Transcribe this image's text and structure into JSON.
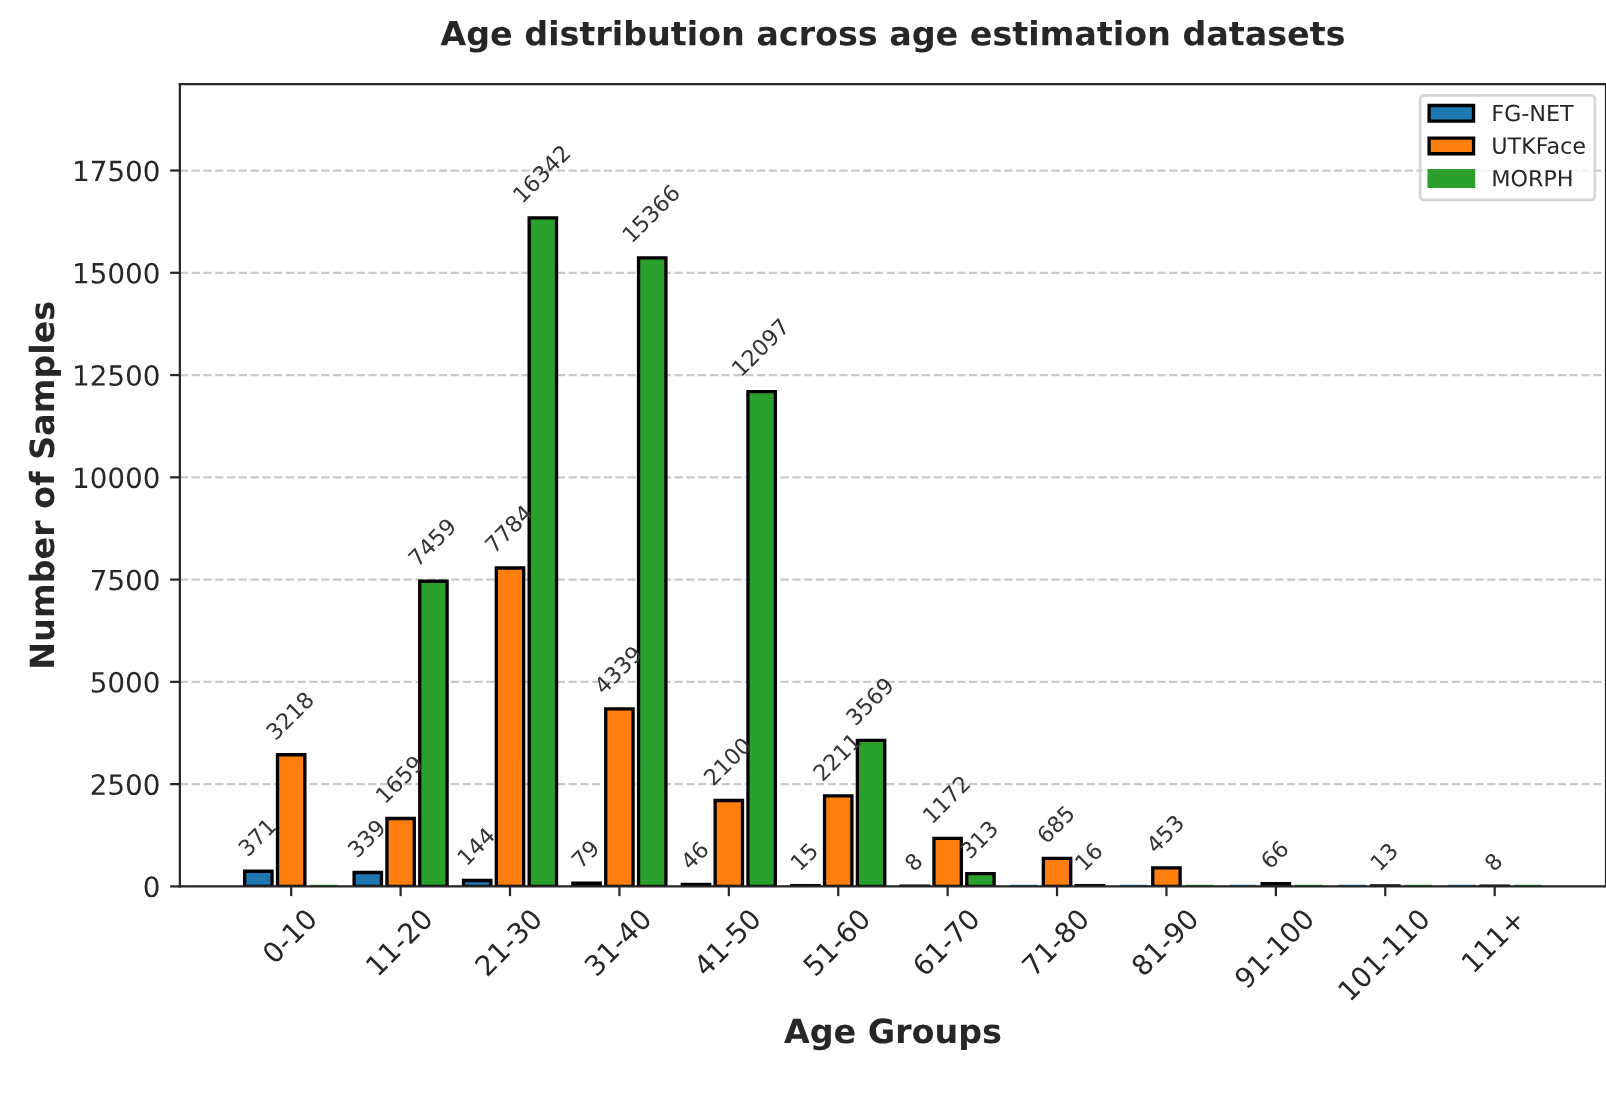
{
  "chart_data": {
    "type": "bar",
    "title": "Age distribution across age estimation datasets",
    "xlabel": "Age Groups",
    "ylabel": "Number of Samples",
    "categories": [
      "0-10",
      "11-20",
      "21-30",
      "31-40",
      "41-50",
      "51-60",
      "61-70",
      "71-80",
      "81-90",
      "91-100",
      "101-110",
      "111+"
    ],
    "series": [
      {
        "name": "FG-NET",
        "color": "#1f77b4",
        "values": [
          371,
          339,
          144,
          79,
          46,
          15,
          8,
          0,
          0,
          0,
          0,
          0
        ],
        "value_labels": [
          "371",
          "339",
          "144",
          "79",
          "46",
          "15",
          "8",
          null,
          null,
          null,
          null,
          null
        ]
      },
      {
        "name": "UTKFace",
        "color": "#ff7f0e",
        "values": [
          3218,
          1659,
          7784,
          4339,
          2100,
          2211,
          1172,
          685,
          453,
          66,
          13,
          8
        ],
        "value_labels": [
          "3218",
          "1659",
          "7784",
          "4339",
          "2100",
          "2211",
          "1172",
          "685",
          "453",
          "66",
          "13",
          "8"
        ]
      },
      {
        "name": "MORPH",
        "color": "#2ca02c",
        "values": [
          0,
          7459,
          16342,
          15366,
          12097,
          3569,
          313,
          16,
          0,
          0,
          0,
          0
        ],
        "value_labels": [
          null,
          "7459",
          "16342",
          "15366",
          "12097",
          "3569",
          "313",
          "16",
          null,
          null,
          null,
          null
        ]
      }
    ],
    "ylim": [
      0,
      19610
    ],
    "yticks": [
      0,
      2500,
      5000,
      7500,
      10000,
      12500,
      15000,
      17500
    ],
    "grid": "y",
    "legend": "top right"
  }
}
